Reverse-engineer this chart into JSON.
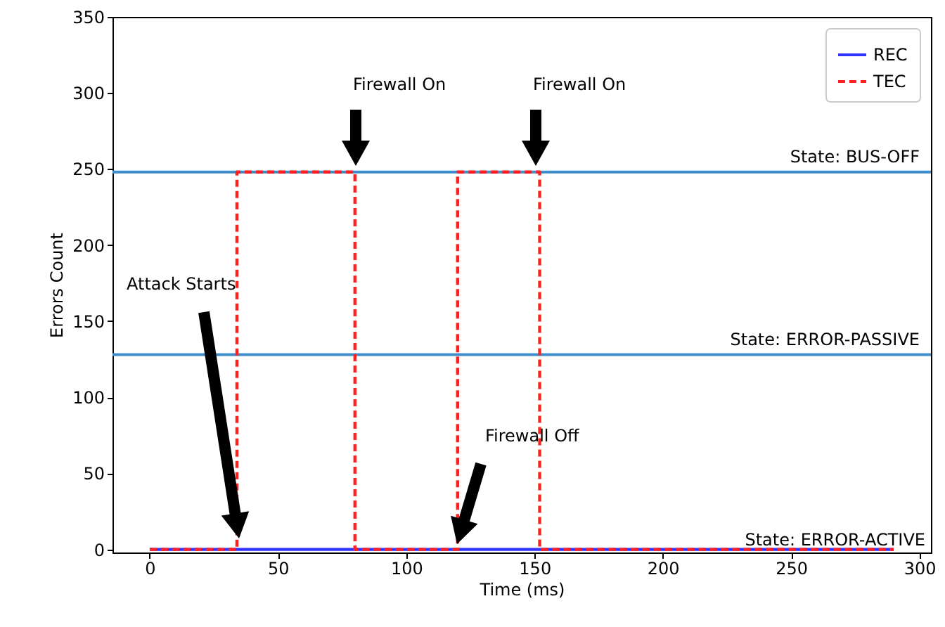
{
  "chart_data": {
    "type": "line",
    "xlabel": "Time (ms)",
    "ylabel": "Errors Count",
    "x": [
      0,
      290
    ],
    "series": [
      {
        "name": "REC",
        "color": "#3333ff",
        "line_style": "solid",
        "values": [
          0,
          0
        ]
      },
      {
        "name": "TEC",
        "color": "#ff2020",
        "line_style": "dashed",
        "x": [
          0,
          34,
          34,
          80,
          80,
          120,
          120,
          152,
          152,
          290
        ],
        "values": [
          0,
          0,
          248,
          248,
          0,
          0,
          248,
          248,
          0,
          0
        ]
      }
    ],
    "xlim": [
      -14.5,
      304.5
    ],
    "xticks": [
      0,
      50,
      100,
      150,
      200,
      250,
      300
    ],
    "ylim": [
      -2,
      350
    ],
    "yticks": [
      0,
      50,
      100,
      150,
      200,
      250,
      300,
      350
    ],
    "ref_lines": [
      {
        "axis": "y",
        "value": 248,
        "label": "State: BUS-OFF",
        "color": "#3f8ecb"
      },
      {
        "axis": "y",
        "value": 128,
        "label": "State: ERROR-PASSIVE",
        "color": "#3f8ecb"
      }
    ],
    "annotations": [
      "Attack Starts",
      "Firewall On",
      "Firewall On",
      "Firewall Off",
      "State: ERROR-ACTIVE"
    ],
    "legend": "top right",
    "grid": false,
    "marker": "none"
  }
}
